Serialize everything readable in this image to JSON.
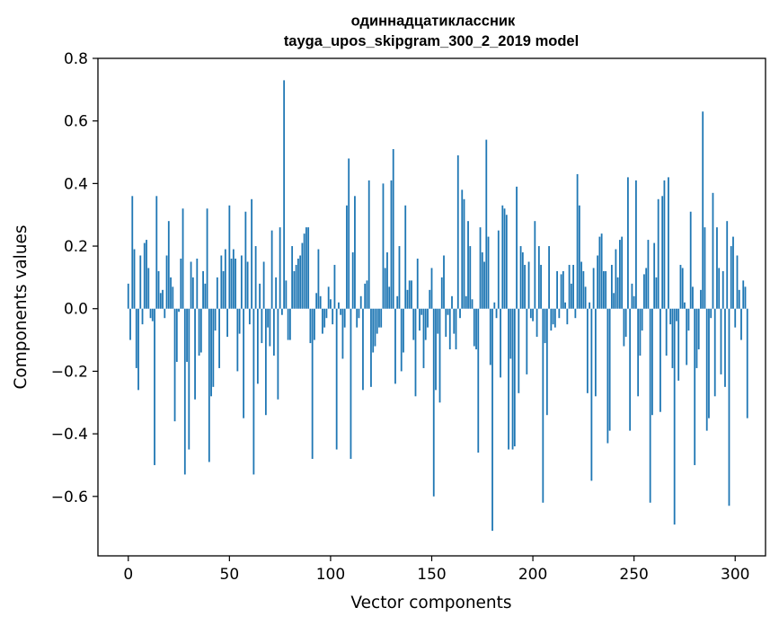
{
  "chart_data": {
    "type": "bar",
    "title": "одиннадцатиклассник",
    "subtitle": "tayga_upos_skipgram_300_2_2019 model",
    "xlabel": "Vector components",
    "ylabel": "Components values",
    "xlim": [
      -15,
      315
    ],
    "ylim": [
      -0.79,
      0.8
    ],
    "xticks": [
      0,
      50,
      100,
      150,
      200,
      250,
      300
    ],
    "xtick_labels": [
      "0",
      "50",
      "100",
      "150",
      "200",
      "250",
      "300"
    ],
    "yticks": [
      -0.6,
      -0.4,
      -0.2,
      0.0,
      0.2,
      0.4,
      0.6,
      0.8
    ],
    "ytick_labels": [
      "−0.6",
      "−0.4",
      "−0.2",
      "0.0",
      "0.2",
      "0.4",
      "0.6",
      "0.8"
    ],
    "bar_color": "#1f77b4",
    "values": [
      0.08,
      -0.1,
      0.36,
      0.19,
      -0.19,
      -0.26,
      0.17,
      -0.05,
      0.21,
      0.22,
      0.13,
      -0.03,
      -0.04,
      -0.5,
      0.36,
      0.12,
      0.05,
      0.06,
      -0.03,
      0.17,
      0.28,
      0.1,
      0.07,
      -0.36,
      -0.17,
      -0.01,
      0.16,
      0.32,
      -0.53,
      -0.17,
      -0.45,
      0.15,
      0.1,
      -0.29,
      0.16,
      -0.15,
      -0.14,
      0.12,
      0.08,
      0.32,
      -0.49,
      -0.28,
      -0.25,
      -0.07,
      0.1,
      -0.19,
      0.17,
      0.12,
      0.19,
      -0.09,
      0.33,
      0.16,
      0.19,
      0.16,
      -0.2,
      -0.08,
      0.17,
      -0.35,
      0.31,
      0.15,
      -0.05,
      0.35,
      -0.53,
      0.2,
      -0.24,
      0.08,
      -0.11,
      0.15,
      -0.34,
      -0.06,
      -0.12,
      0.25,
      -0.15,
      0.1,
      -0.29,
      0.26,
      -0.02,
      0.73,
      0.09,
      -0.1,
      -0.1,
      0.2,
      0.12,
      0.14,
      0.16,
      0.17,
      0.21,
      0.24,
      0.26,
      0.26,
      -0.11,
      -0.48,
      -0.1,
      0.05,
      0.19,
      0.04,
      -0.08,
      -0.06,
      -0.03,
      0.07,
      0.03,
      -0.05,
      0.14,
      -0.45,
      0.02,
      -0.02,
      -0.16,
      -0.06,
      0.33,
      0.48,
      -0.48,
      0.18,
      0.36,
      -0.06,
      -0.03,
      0.04,
      -0.26,
      0.08,
      0.09,
      0.41,
      -0.25,
      -0.14,
      -0.12,
      -0.08,
      -0.06,
      -0.06,
      0.4,
      0.13,
      0.18,
      0.07,
      0.41,
      0.51,
      -0.24,
      0.04,
      0.2,
      -0.2,
      -0.14,
      0.33,
      0.06,
      0.09,
      0.09,
      -0.1,
      -0.28,
      0.16,
      -0.07,
      -0.02,
      -0.19,
      -0.1,
      -0.06,
      0.06,
      0.13,
      -0.6,
      -0.26,
      -0.08,
      -0.3,
      0.1,
      0.17,
      -0.09,
      -0.02,
      -0.13,
      0.04,
      -0.08,
      -0.13,
      0.49,
      -0.03,
      0.38,
      0.35,
      0.04,
      0.28,
      0.2,
      0.03,
      -0.12,
      -0.13,
      -0.46,
      0.26,
      0.18,
      0.15,
      0.54,
      0.23,
      -0.18,
      -0.71,
      0.02,
      -0.03,
      0.25,
      -0.22,
      0.33,
      0.32,
      0.3,
      -0.45,
      -0.16,
      -0.45,
      -0.44,
      0.39,
      -0.27,
      0.2,
      0.18,
      0.14,
      -0.21,
      0.15,
      -0.03,
      -0.04,
      0.28,
      -0.09,
      0.2,
      0.14,
      -0.62,
      -0.11,
      -0.34,
      0.2,
      -0.07,
      -0.05,
      -0.06,
      0.12,
      -0.03,
      0.11,
      0.12,
      0.02,
      -0.05,
      0.14,
      0.08,
      0.14,
      -0.03,
      0.43,
      0.33,
      0.15,
      0.12,
      0.07,
      -0.27,
      0.02,
      -0.55,
      0.13,
      -0.28,
      0.17,
      0.23,
      0.24,
      0.12,
      0.12,
      -0.43,
      -0.39,
      0.14,
      0.05,
      0.19,
      0.1,
      0.22,
      0.23,
      -0.12,
      -0.09,
      0.42,
      -0.39,
      0.08,
      0.04,
      0.41,
      -0.28,
      -0.15,
      -0.07,
      0.11,
      0.13,
      0.22,
      -0.62,
      -0.34,
      0.21,
      0.1,
      0.35,
      -0.33,
      0.36,
      0.41,
      -0.15,
      0.42,
      -0.05,
      -0.19,
      -0.69,
      -0.04,
      -0.23,
      0.14,
      0.13,
      0.02,
      -0.18,
      -0.07,
      0.31,
      0.07,
      -0.5,
      -0.19,
      -0.13,
      0.06,
      0.63,
      0.26,
      -0.39,
      -0.35,
      -0.03,
      0.37,
      -0.28,
      0.26,
      0.13,
      -0.21,
      0.12,
      -0.25,
      0.28,
      -0.63,
      0.2,
      0.23,
      -0.06,
      0.17,
      0.06,
      -0.1,
      0.09,
      0.07,
      -0.35
    ]
  }
}
